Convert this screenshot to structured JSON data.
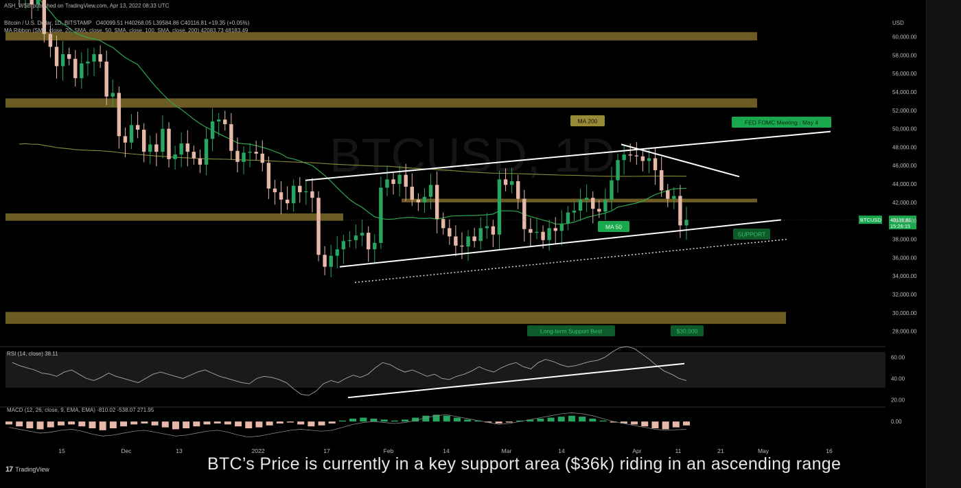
{
  "header": {
    "published": "ASH_WSB published on TradingView.com, Apr 13, 2022 08:33 UTC",
    "symbol": "Bitcoin / U.S. Dollar, 1D, BITSTAMP",
    "ohlc": "O40099.51 H40268.05 L39584.86 C40116.81 +19.35 (+0.05%)",
    "ma_ribbon": "MA Ribbon (SMA, close, 20, SMA, close, 50, SMA, close, 100, SMA, close, 200) 42083.73 48183.49",
    "currency": "USD"
  },
  "watermark": {
    "main": "BTCUSD, 1D"
  },
  "price_tag": {
    "symbol": "BTCUSD",
    "price": "40116.81",
    "countdown": "15:26:15"
  },
  "annotations": {
    "ma200": "MA 200",
    "ma50": "MA 50",
    "fomc": "FED FOMC Meeting : May 4",
    "support": "SUPPORT",
    "long_term": "Long-term Support Best",
    "target": "$30,000"
  },
  "rsi": {
    "label": "RSI (14, close)",
    "value": "38.11",
    "ticks": [
      "60.00",
      "40.00",
      "20.00"
    ]
  },
  "macd": {
    "label": "MACD (12, 26, close, 9, EMA, EMA)",
    "values": "-810.02  -538.07  271.95",
    "ticks": [
      "0.00"
    ]
  },
  "brand": {
    "name": "TradingView"
  },
  "caption": "BTC’s Price is currently in a key support area ($36k) riding in an ascending range",
  "colors": {
    "up": "#26a660",
    "down": "#e6b8a8",
    "ma200": "#8a8a3a",
    "ma50": "#2fa84f",
    "zone": "#c4a640",
    "accent_green": "#1aa84c",
    "label_gold": "#9b8a35"
  },
  "chart_data": {
    "type": "candlestick",
    "ylabel": "USD",
    "ylim": [
      27000,
      62500
    ],
    "y_ticks": [
      28000,
      30000,
      32000,
      34000,
      36000,
      38000,
      40000,
      42000,
      44000,
      46000,
      48000,
      50000,
      52000,
      54000,
      56000,
      58000,
      60000
    ],
    "x_ticks": [
      "15",
      "Dec",
      "13",
      "2022",
      "17",
      "Feb",
      "14",
      "Mar",
      "14",
      "Apr",
      "11",
      "21",
      "May",
      "16"
    ],
    "date_range": [
      "2021-11-09",
      "2022-04-13"
    ],
    "key_levels": {
      "resistance_zone_top": [
        59600,
        60500
      ],
      "resistance_zone_upper": [
        52300,
        53300
      ],
      "support_zone_mid": [
        42000,
        42400
      ],
      "support_zone_left": [
        40000,
        40800
      ],
      "long_term_support_zone": [
        28800,
        30100
      ]
    },
    "ascending_channel": {
      "lower_start": 35000,
      "lower_end": 40100,
      "upper_start": 44400,
      "upper_end": 49700
    },
    "last_close": 40116.81,
    "close_path": [
      64400,
      65000,
      63500,
      64200,
      60300,
      58900,
      56800,
      58100,
      57600,
      55500,
      57100,
      57300,
      58100,
      57300,
      53500,
      53900,
      49200,
      48500,
      50400,
      49900,
      47500,
      48300,
      47500,
      50000,
      46700,
      47200,
      48400,
      47500,
      46800,
      46100,
      48900,
      50800,
      51000,
      50500,
      47600,
      46400,
      47400,
      47500,
      47300,
      46300,
      43500,
      43100,
      42300,
      41900,
      43800,
      43100,
      43200,
      42500,
      36300,
      35000,
      36200,
      36900,
      37800,
      37900,
      38400,
      38700,
      36900,
      37600,
      43600,
      44500,
      44000,
      45000,
      43700,
      42300,
      42000,
      42600,
      43900,
      40200,
      39200,
      38300,
      37300,
      37200,
      38300,
      37800,
      39200,
      39400,
      38500,
      44500,
      43900,
      44300,
      42400,
      39100,
      38700,
      38800,
      37900,
      39200,
      38900,
      39700,
      40900,
      41100,
      42300,
      42500,
      41300,
      41000,
      42300,
      44400,
      46600,
      47200,
      47100,
      47000,
      46500,
      46800,
      45500,
      43300,
      42400,
      42700,
      39500,
      40100
    ],
    "rsi_ylim": [
      15,
      70
    ],
    "rsi_values": [
      55,
      52,
      50,
      48,
      45,
      44,
      42,
      46,
      48,
      44,
      40,
      38,
      41,
      45,
      42,
      40,
      38,
      36,
      40,
      44,
      46,
      44,
      42,
      40,
      43,
      46,
      48,
      45,
      42,
      40,
      38,
      36,
      35,
      40,
      42,
      41,
      39,
      36,
      30,
      25,
      24,
      28,
      35,
      38,
      36,
      40,
      43,
      41,
      44,
      50,
      55,
      53,
      49,
      46,
      48,
      45,
      42,
      44,
      40,
      39,
      42,
      44,
      47,
      51,
      48,
      46,
      50,
      53,
      55,
      51,
      49,
      55,
      58,
      56,
      53,
      51,
      52,
      54,
      56,
      57,
      60,
      65,
      69,
      70,
      68,
      63,
      58,
      52,
      47,
      44,
      40,
      38
    ],
    "rsi_trendline": [
      22,
      54
    ],
    "macd_ylim": [
      -2400,
      1500
    ],
    "macd_hist": [
      -300,
      -500,
      -700,
      -800,
      -600,
      -400,
      -300,
      -500,
      -700,
      -900,
      -700,
      -500,
      -300,
      -200,
      -400,
      -600,
      -800,
      -700,
      -500,
      -300,
      -200,
      -300,
      -500,
      -700,
      -600,
      -400,
      -200,
      -100,
      -300,
      -500,
      -400,
      -200,
      100,
      300,
      400,
      300,
      200,
      100,
      200,
      400,
      600,
      700,
      600,
      400,
      200,
      100,
      -100,
      -200,
      -100,
      100,
      200,
      300,
      400,
      500,
      600,
      500,
      300,
      100,
      -100,
      -200,
      -300,
      -500,
      -700,
      -800,
      -600,
      -400
    ],
    "macd_line": [
      -600,
      -800,
      -1000,
      -1200,
      -1100,
      -900,
      -800,
      -1000,
      -1300,
      -1500,
      -1400,
      -1200,
      -1000,
      -900,
      -1100,
      -1300,
      -1500,
      -1400,
      -1200,
      -1000,
      -900,
      -1100,
      -1400,
      -1600,
      -1500,
      -1300,
      -1100,
      -900,
      -800,
      -900,
      -1000,
      -900,
      -600,
      -300,
      -100,
      0,
      -100,
      -200,
      -100,
      100,
      400,
      600,
      700,
      500,
      300,
      100,
      -100,
      -300,
      -200,
      0,
      200,
      400,
      600,
      800,
      900,
      800,
      600,
      300,
      0,
      -200,
      -400,
      -600,
      -800,
      -900,
      -850,
      -810
    ]
  }
}
